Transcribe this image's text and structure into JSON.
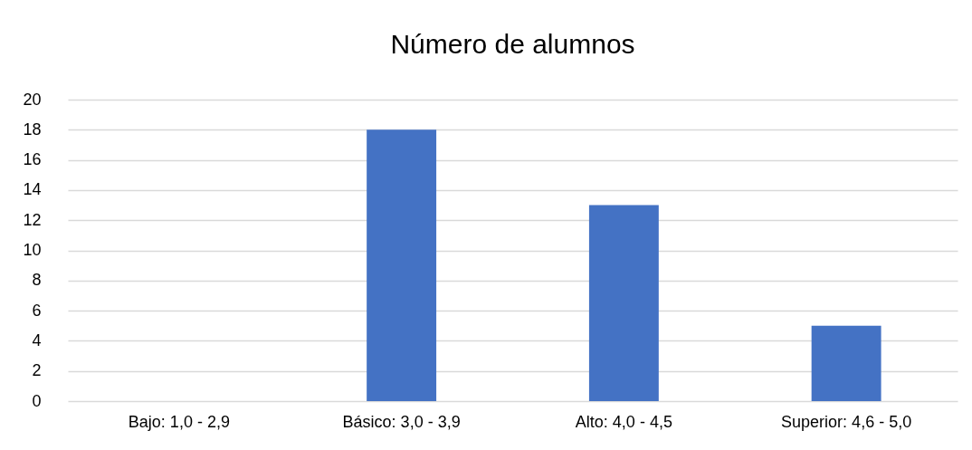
{
  "chart_data": {
    "type": "bar",
    "title": "Número de alumnos",
    "categories": [
      "Bajo: 1,0 - 2,9",
      "Básico: 3,0 - 3,9",
      "Alto: 4,0 - 4,5",
      "Superior: 4,6 - 5,0"
    ],
    "values": [
      0,
      18,
      13,
      5
    ],
    "color": "#4472c4",
    "ylim": [
      0,
      20
    ],
    "yticks": [
      0,
      2,
      4,
      6,
      8,
      10,
      12,
      14,
      16,
      18,
      20
    ],
    "grid": "y"
  }
}
